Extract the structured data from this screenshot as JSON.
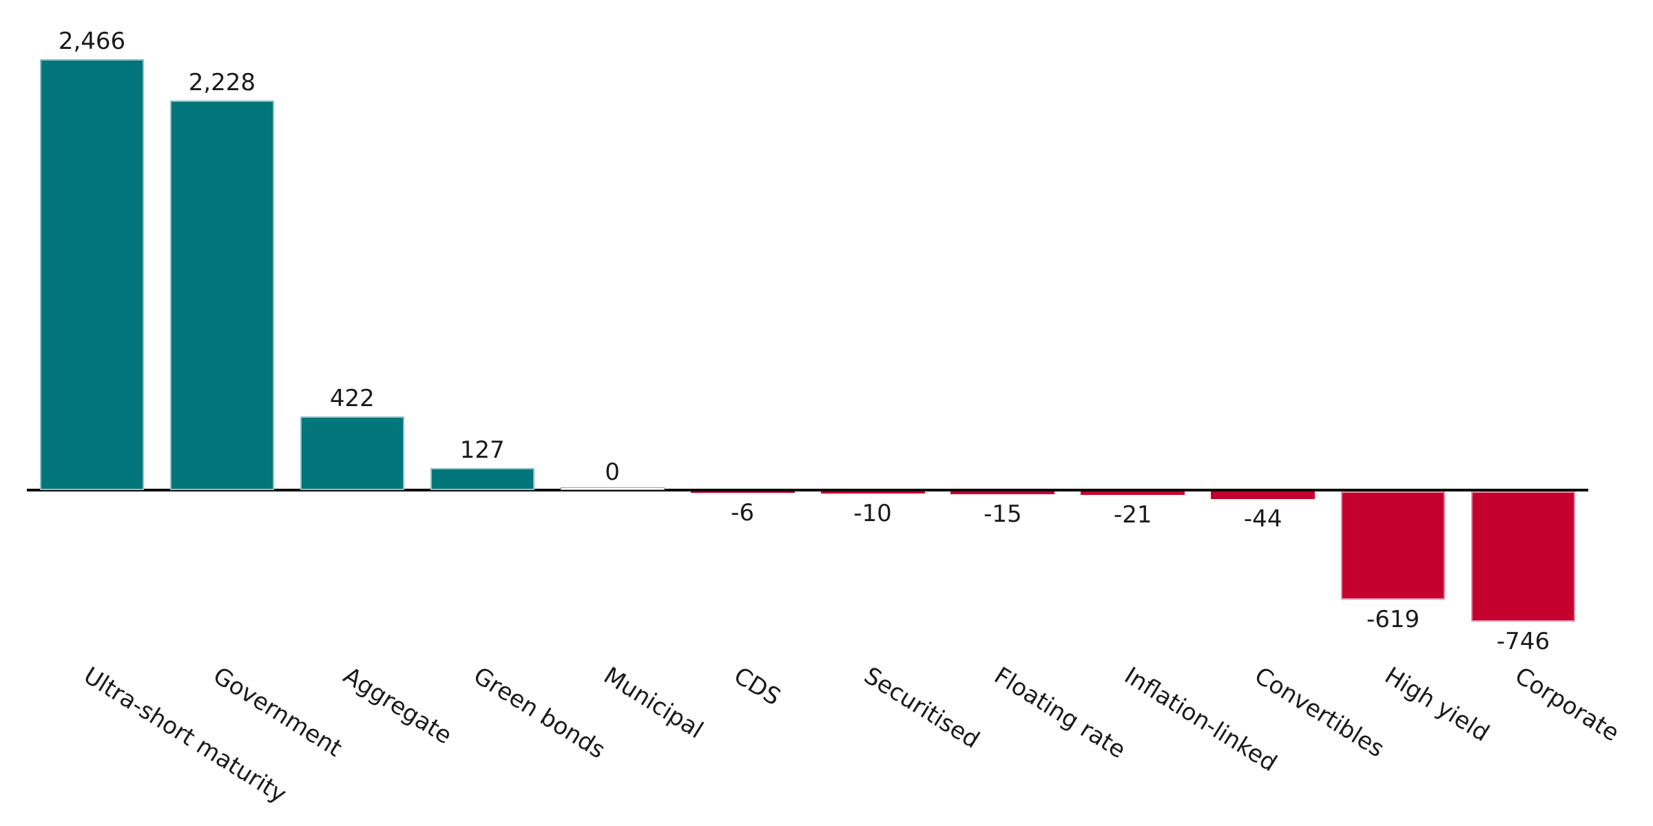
{
  "chart_data": {
    "type": "bar",
    "title": "",
    "xlabel": "",
    "ylabel": "",
    "categories": [
      "Ultra-short maturity",
      "Government",
      "Aggregate",
      "Green bonds",
      "Municipal",
      "CDS",
      "Securitised",
      "Floating rate",
      "Inflation-linked",
      "Convertibles",
      "High yield",
      "Corporate"
    ],
    "values": [
      2466,
      2228,
      422,
      127,
      0,
      -6,
      -10,
      -15,
      -21,
      -44,
      -619,
      -746
    ],
    "value_labels": [
      "2,466",
      "2,228",
      "422",
      "127",
      "0",
      "-6",
      "-10",
      "-15",
      "-21",
      "-44",
      "-619",
      "-746"
    ],
    "ylim": [
      -800,
      2550
    ],
    "grid": false,
    "legend": null,
    "baseline": 0,
    "tick_label_rotation_deg": -32,
    "bar_colors": {
      "positive": "#00767A",
      "negative": "#C5002E",
      "zero": "#FFFFFF"
    },
    "axis_color": "#0a0a0a",
    "label_color": "#1a1a1a"
  }
}
